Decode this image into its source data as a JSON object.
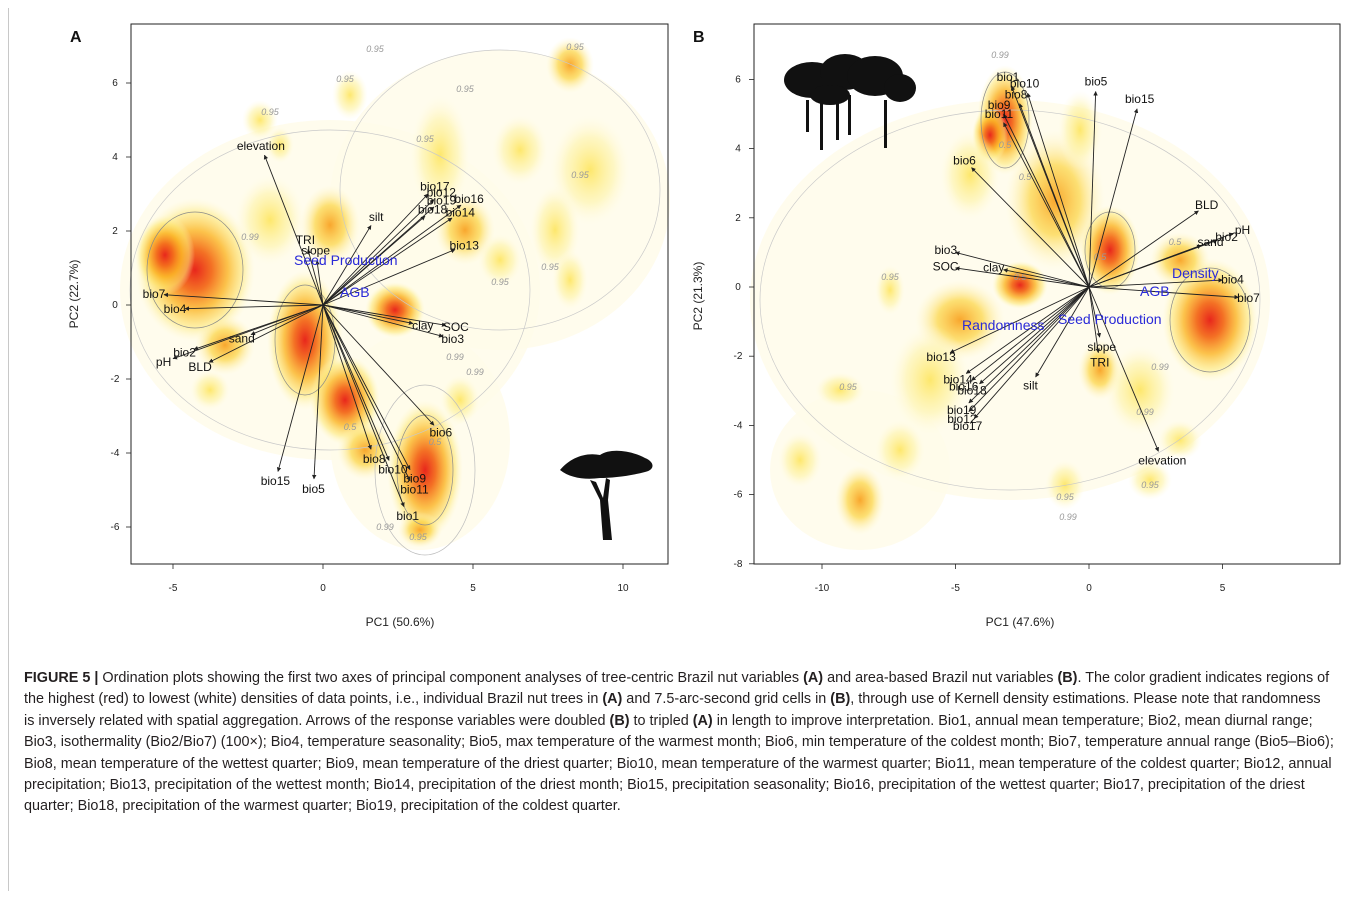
{
  "panel_a": {
    "letter": "A",
    "xlabel": "PC1 (50.6%)",
    "ylabel": "PC2 (22.7%)",
    "xticks": [
      "-5",
      "0",
      "5",
      "10"
    ],
    "yticks": [
      "6",
      "4",
      "2",
      "0",
      "-2",
      "-4",
      "-6"
    ],
    "contour_labels": [
      "0.95",
      "0.99",
      "0.5"
    ],
    "blue_labels": [
      "Seed Production",
      "AGB"
    ],
    "arrows": [
      {
        "label": "elevation",
        "x": -1.95,
        "y": 4.05
      },
      {
        "label": "TRI",
        "x": -0.5,
        "y": 1.5
      },
      {
        "label": "slope",
        "x": -0.2,
        "y": 1.2
      },
      {
        "label": "silt",
        "x": 1.6,
        "y": 2.15
      },
      {
        "label": "bio17",
        "x": 3.5,
        "y": 3.0
      },
      {
        "label": "bio12",
        "x": 3.7,
        "y": 2.85
      },
      {
        "label": "bio19",
        "x": 3.7,
        "y": 2.65
      },
      {
        "label": "bio18",
        "x": 3.4,
        "y": 2.4
      },
      {
        "label": "bio16",
        "x": 4.6,
        "y": 2.7
      },
      {
        "label": "bio14",
        "x": 4.3,
        "y": 2.35
      },
      {
        "label": "bio13",
        "x": 4.4,
        "y": 1.5
      },
      {
        "label": "bio7",
        "x": -5.3,
        "y": 0.28
      },
      {
        "label": "bio4",
        "x": -4.6,
        "y": -0.1
      },
      {
        "label": "sand",
        "x": -2.4,
        "y": -0.8
      },
      {
        "label": "bio2",
        "x": -4.3,
        "y": -1.2
      },
      {
        "label": "pH",
        "x": -5.0,
        "y": -1.45
      },
      {
        "label": "BLD",
        "x": -3.8,
        "y": -1.55
      },
      {
        "label": "clay",
        "x": 3.0,
        "y": -0.5
      },
      {
        "label": "SOC",
        "x": 4.1,
        "y": -0.55
      },
      {
        "label": "bio3",
        "x": 4.0,
        "y": -0.85
      },
      {
        "label": "bio6",
        "x": 3.7,
        "y": -3.25
      },
      {
        "label": "bio8",
        "x": 1.6,
        "y": -3.9
      },
      {
        "label": "bio10",
        "x": 2.2,
        "y": -4.2
      },
      {
        "label": "bio9",
        "x": 2.9,
        "y": -4.45
      },
      {
        "label": "bio11",
        "x": 2.9,
        "y": -4.75
      },
      {
        "label": "bio1",
        "x": 2.7,
        "y": -5.45
      },
      {
        "label": "bio15",
        "x": -1.5,
        "y": -4.5
      },
      {
        "label": "bio5",
        "x": -0.3,
        "y": -4.7
      }
    ]
  },
  "panel_b": {
    "letter": "B",
    "xlabel": "PC1 (47.6%)",
    "ylabel": "PC2 (21.3%)",
    "xticks": [
      "-10",
      "-5",
      "0",
      "5"
    ],
    "yticks": [
      "6",
      "4",
      "2",
      "0",
      "-2",
      "-4",
      "-6",
      "-8"
    ],
    "contour_labels": [
      "0.99",
      "0.95",
      "0.5"
    ],
    "blue_labels": [
      "Density",
      "AGB",
      "Randomness",
      "Seed Production"
    ],
    "arrows": [
      {
        "label": "bio1",
        "x": -2.9,
        "y": 5.8
      },
      {
        "label": "bio10",
        "x": -2.3,
        "y": 5.6
      },
      {
        "label": "bio8",
        "x": -2.6,
        "y": 5.3
      },
      {
        "label": "bio9",
        "x": -3.2,
        "y": 5.0
      },
      {
        "label": "bio11",
        "x": -3.2,
        "y": 4.75
      },
      {
        "label": "bio6",
        "x": -4.4,
        "y": 3.45
      },
      {
        "label": "bio5",
        "x": 0.25,
        "y": 5.65
      },
      {
        "label": "bio15",
        "x": 1.8,
        "y": 5.15
      },
      {
        "label": "BLD",
        "x": 4.1,
        "y": 2.2
      },
      {
        "label": "pH",
        "x": 5.4,
        "y": 1.55
      },
      {
        "label": "bio2",
        "x": 4.8,
        "y": 1.35
      },
      {
        "label": "sand",
        "x": 4.2,
        "y": 1.2
      },
      {
        "label": "bio4",
        "x": 5.0,
        "y": 0.2
      },
      {
        "label": "bio7",
        "x": 5.6,
        "y": -0.3
      },
      {
        "label": "bio3",
        "x": -5.0,
        "y": 1.0
      },
      {
        "label": "SOC",
        "x": -5.0,
        "y": 0.55
      },
      {
        "label": "clay",
        "x": -3.2,
        "y": 0.5
      },
      {
        "label": "slope",
        "x": 0.4,
        "y": -1.45
      },
      {
        "label": "TRI",
        "x": 0.35,
        "y": -1.9
      },
      {
        "label": "silt",
        "x": -2.0,
        "y": -2.6
      },
      {
        "label": "elevation",
        "x": 2.6,
        "y": -4.75
      },
      {
        "label": "bio13",
        "x": -5.2,
        "y": -1.9
      },
      {
        "label": "bio14",
        "x": -4.6,
        "y": -2.5
      },
      {
        "label": "bio16",
        "x": -4.4,
        "y": -2.7
      },
      {
        "label": "bio18",
        "x": -4.1,
        "y": -2.8
      },
      {
        "label": "bio19",
        "x": -4.5,
        "y": -3.35
      },
      {
        "label": "bio12",
        "x": -4.5,
        "y": -3.6
      },
      {
        "label": "bio17",
        "x": -4.3,
        "y": -3.8
      }
    ]
  },
  "caption": {
    "label": "FIGURE 5 |",
    "segments": [
      {
        "t": " Ordination plots showing the first two axes of principal component analyses of tree-centric Brazil nut variables ",
        "b": false
      },
      {
        "t": "(A)",
        "b": true
      },
      {
        "t": " and area-based Brazil nut variables ",
        "b": false
      },
      {
        "t": "(B)",
        "b": true
      },
      {
        "t": ". The color gradient indicates regions of the highest (red) to lowest (white) densities of data points, i.e., individual Brazil nut trees in ",
        "b": false
      },
      {
        "t": "(A)",
        "b": true
      },
      {
        "t": " and 7.5-arc-second grid cells in ",
        "b": false
      },
      {
        "t": "(B)",
        "b": true
      },
      {
        "t": ", through use of Kernell density estimations. Please note that randomness is inversely related with spatial aggregation. Arrows of the response variables were doubled ",
        "b": false
      },
      {
        "t": "(B)",
        "b": true
      },
      {
        "t": " to tripled ",
        "b": false
      },
      {
        "t": "(A)",
        "b": true
      },
      {
        "t": " in length to improve interpretation. Bio1, annual mean temperature; Bio2, mean diurnal range; Bio3, isothermality (Bio2/Bio7) (100×); Bio4, temperature seasonality; Bio5, max temperature of the warmest month; Bio6, min temperature of the coldest month; Bio7, temperature annual range (Bio5–Bio6); Bio8, mean temperature of the wettest quarter; Bio9, mean temperature of the driest quarter; Bio10, mean temperature of the warmest quarter; Bio11, mean temperature of the coldest quarter; Bio12, annual precipitation; Bio13, precipitation of the wettest month; Bio14, precipitation of the driest month; Bio15, precipitation seasonality; Bio16, precipitation of the wettest quarter; Bio17, precipitation of the driest quarter; Bio18, precipitation of the warmest quarter; Bio19, precipitation of the coldest quarter.",
        "b": false
      }
    ]
  }
}
